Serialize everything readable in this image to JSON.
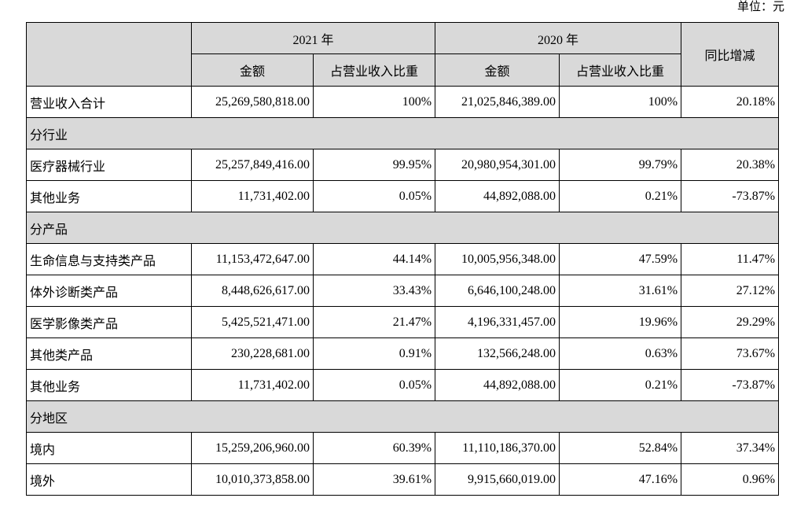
{
  "unit": "单位：元",
  "table": {
    "header": {
      "year_a": "2021 年",
      "year_b": "2020 年",
      "yoy": "同比增减",
      "amount_a": "金额",
      "ratio_a": "占营业收入比重",
      "amount_b": "金额",
      "ratio_b": "占营业收入比重"
    },
    "rows": [
      [
        "营业收入合计",
        "25,269,580,818.00",
        "100%",
        "21,025,846,389.00",
        "100%",
        "20.18%"
      ],
      [
        "分行业"
      ],
      [
        "医疗器械行业",
        "25,257,849,416.00",
        "99.95%",
        "20,980,954,301.00",
        "99.79%",
        "20.38%"
      ],
      [
        "其他业务",
        "11,731,402.00",
        "0.05%",
        "44,892,088.00",
        "0.21%",
        "-73.87%"
      ],
      [
        "分产品"
      ],
      [
        "生命信息与支持类产品",
        "11,153,472,647.00",
        "44.14%",
        "10,005,956,348.00",
        "47.59%",
        "11.47%"
      ],
      [
        "体外诊断类产品",
        "8,448,626,617.00",
        "33.43%",
        "6,646,100,248.00",
        "31.61%",
        "27.12%"
      ],
      [
        "医学影像类产品",
        "5,425,521,471.00",
        "21.47%",
        "4,196,331,457.00",
        "19.96%",
        "29.29%"
      ],
      [
        "其他类产品",
        "230,228,681.00",
        "0.91%",
        "132,566,248.00",
        "0.63%",
        "73.67%"
      ],
      [
        "其他业务",
        "11,731,402.00",
        "0.05%",
        "44,892,088.00",
        "0.21%",
        "-73.87%"
      ],
      [
        "分地区"
      ],
      [
        "境内",
        "15,259,206,960.00",
        "60.39%",
        "11,110,186,370.00",
        "52.84%",
        "37.34%"
      ],
      [
        "境外",
        "10,010,373,858.00",
        "39.61%",
        "9,915,660,019.00",
        "47.16%",
        "0.96%"
      ]
    ]
  }
}
